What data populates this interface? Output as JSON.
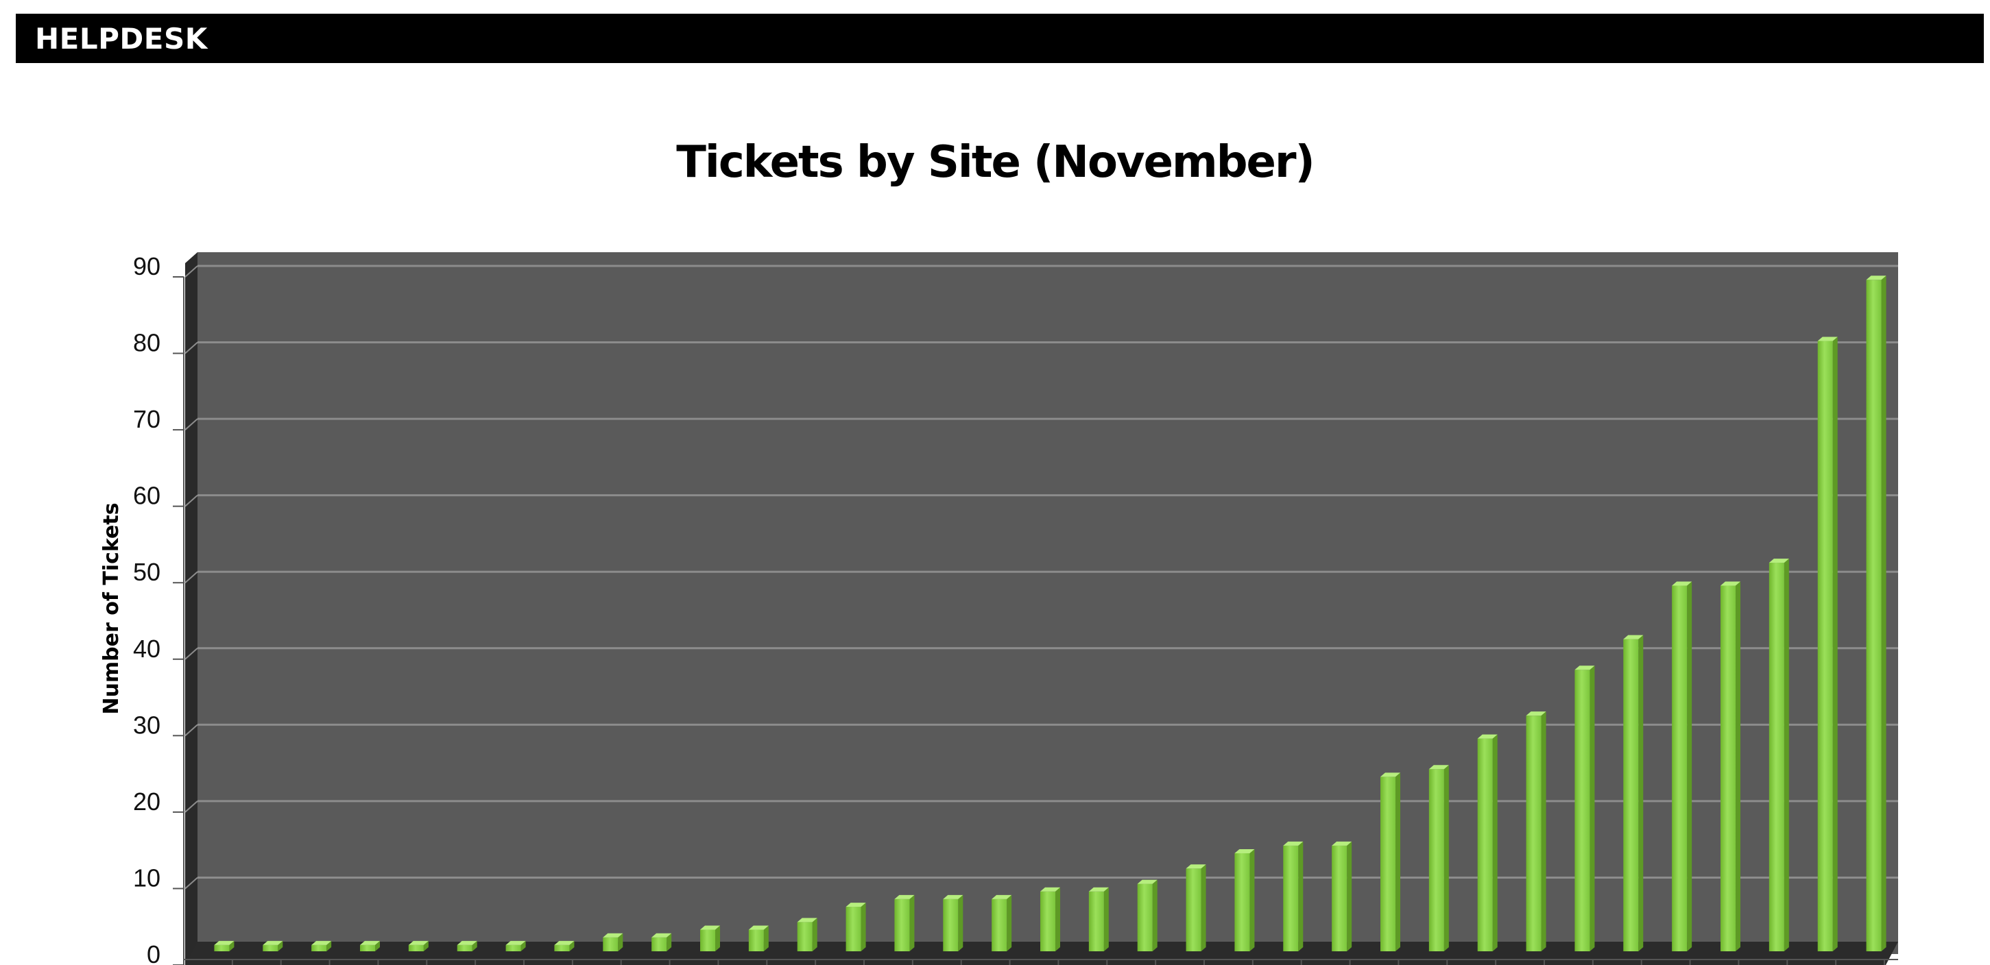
{
  "header": {
    "title": "HELPDESK"
  },
  "chart_data": {
    "type": "bar",
    "title": "Tickets by Site (November)",
    "xlabel": "",
    "ylabel": "Number of Tickets",
    "ylim": [
      0,
      90
    ],
    "yticks": [
      0,
      10,
      20,
      30,
      40,
      50,
      60,
      70,
      80,
      90
    ],
    "grid": true,
    "style": "3d-column",
    "colors": {
      "plot_background": "#5a5a5a",
      "gridline": "#8c8c8c",
      "bar": "#8fd14f",
      "floor": "#2b2b2b"
    },
    "values": [
      1,
      1,
      1,
      1,
      1,
      1,
      1,
      1,
      2,
      2,
      3,
      3,
      4,
      6,
      7,
      7,
      7,
      8,
      8,
      9,
      11,
      13,
      14,
      14,
      23,
      24,
      28,
      31,
      37,
      41,
      48,
      48,
      51,
      80,
      88
    ]
  }
}
